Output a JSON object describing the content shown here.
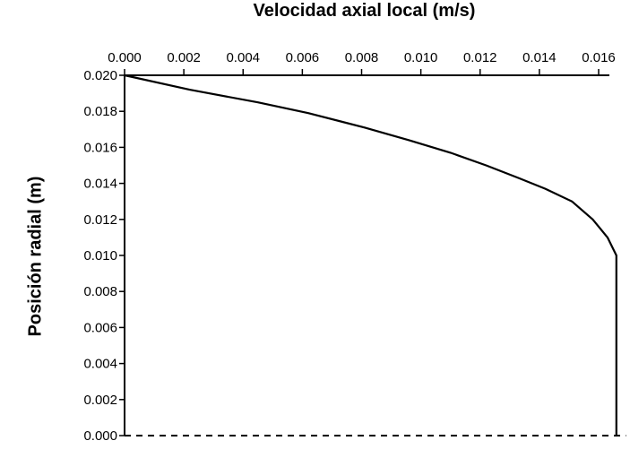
{
  "chart_data": {
    "type": "line",
    "xlabel": "Velocidad axial local (m/s)",
    "ylabel": "Posición radial (m)",
    "x_axis_position": "top",
    "xlim": [
      0,
      0.0168
    ],
    "ylim": [
      0,
      0.02
    ],
    "x_ticks": [
      "0.000",
      "0.002",
      "0.004",
      "0.006",
      "0.008",
      "0.010",
      "0.012",
      "0.014",
      "0.016"
    ],
    "y_ticks": [
      "0.000",
      "0.002",
      "0.004",
      "0.006",
      "0.008",
      "0.010",
      "0.012",
      "0.014",
      "0.016",
      "0.018",
      "0.020"
    ],
    "grid": false,
    "series": [
      {
        "x": [
          0.0,
          0.0022,
          0.0045,
          0.0062,
          0.0081,
          0.0096,
          0.011,
          0.0122,
          0.0133,
          0.0142,
          0.0151,
          0.0158,
          0.0163,
          0.0166,
          0.0166,
          0.0166
        ],
        "y": [
          0.02,
          0.0192,
          0.0185,
          0.0179,
          0.0171,
          0.0164,
          0.0157,
          0.015,
          0.0143,
          0.0137,
          0.013,
          0.012,
          0.011,
          0.01,
          0.005,
          0.0
        ]
      }
    ],
    "baseline_line": {
      "y": 0.0,
      "style": "dashed"
    }
  }
}
